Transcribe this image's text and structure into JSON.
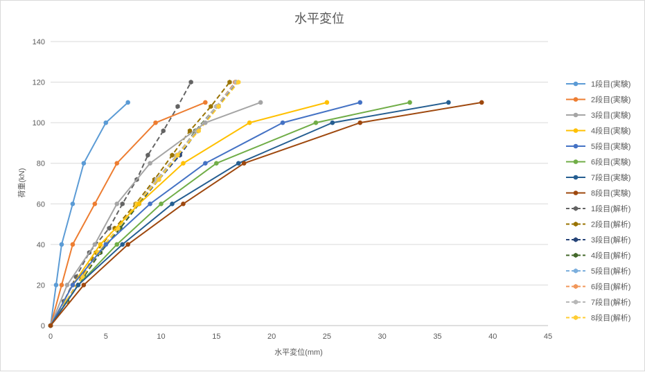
{
  "chart_data": {
    "type": "line",
    "title": "水平変位",
    "xlabel": "水平変位(mm)",
    "ylabel": "荷重(kN)",
    "xlim": [
      0,
      45
    ],
    "ylim": [
      0,
      140
    ],
    "xticks": [
      "0",
      "5",
      "10",
      "15",
      "20",
      "25",
      "30",
      "35",
      "40",
      "45"
    ],
    "yticks": [
      "0",
      "20",
      "40",
      "60",
      "80",
      "100",
      "120",
      "140"
    ],
    "grid": "horizontal",
    "legend": "right",
    "series": [
      {
        "name": "1段目(実験)",
        "color": "#5b9bd5",
        "dash": false,
        "marker": "circle",
        "points": [
          [
            0,
            0
          ],
          [
            0.5,
            20
          ],
          [
            1,
            40
          ],
          [
            2,
            60
          ],
          [
            3,
            80
          ],
          [
            5,
            100
          ],
          [
            7,
            110
          ]
        ]
      },
      {
        "name": "2段目(実験)",
        "color": "#ed7d31",
        "dash": false,
        "marker": "circle",
        "points": [
          [
            0,
            0
          ],
          [
            1,
            20
          ],
          [
            2,
            40
          ],
          [
            4,
            60
          ],
          [
            6,
            80
          ],
          [
            9.5,
            100
          ],
          [
            14,
            110
          ]
        ]
      },
      {
        "name": "3段目(実験)",
        "color": "#a5a5a5",
        "dash": false,
        "marker": "circle",
        "points": [
          [
            0,
            0
          ],
          [
            1.5,
            20
          ],
          [
            4,
            40
          ],
          [
            6,
            60
          ],
          [
            9,
            80
          ],
          [
            14,
            100
          ],
          [
            19,
            110
          ]
        ]
      },
      {
        "name": "4段目(実験)",
        "color": "#ffc000",
        "dash": false,
        "marker": "circle",
        "points": [
          [
            0,
            0
          ],
          [
            2,
            20
          ],
          [
            4.5,
            40
          ],
          [
            8,
            60
          ],
          [
            12,
            80
          ],
          [
            18,
            100
          ],
          [
            25,
            110
          ]
        ]
      },
      {
        "name": "5段目(実験)",
        "color": "#4472c4",
        "dash": false,
        "marker": "circle",
        "points": [
          [
            0,
            0
          ],
          [
            2,
            20
          ],
          [
            5,
            40
          ],
          [
            9,
            60
          ],
          [
            14,
            80
          ],
          [
            21,
            100
          ],
          [
            28,
            110
          ]
        ]
      },
      {
        "name": "6段目(実験)",
        "color": "#70ad47",
        "dash": false,
        "marker": "circle",
        "points": [
          [
            0,
            0
          ],
          [
            2.5,
            20
          ],
          [
            6,
            40
          ],
          [
            10,
            60
          ],
          [
            15,
            80
          ],
          [
            24,
            100
          ],
          [
            32.5,
            110
          ]
        ]
      },
      {
        "name": "7段目(実験)",
        "color": "#255e91",
        "dash": false,
        "marker": "circle",
        "points": [
          [
            0,
            0
          ],
          [
            2.5,
            20
          ],
          [
            6.5,
            40
          ],
          [
            11,
            60
          ],
          [
            17,
            80
          ],
          [
            25.5,
            100
          ],
          [
            36,
            110
          ]
        ]
      },
      {
        "name": "8段目(実験)",
        "color": "#9e480e",
        "dash": false,
        "marker": "circle",
        "points": [
          [
            0,
            0
          ],
          [
            3,
            20
          ],
          [
            7,
            40
          ],
          [
            12,
            60
          ],
          [
            17.5,
            80
          ],
          [
            28,
            100
          ],
          [
            39,
            110
          ]
        ]
      },
      {
        "name": "1段目(解析)",
        "color": "#636363",
        "dash": true,
        "marker": "hexagon",
        "points": [
          [
            0,
            0
          ],
          [
            1.2,
            12
          ],
          [
            2.3,
            24
          ],
          [
            3.5,
            36
          ],
          [
            5.3,
            48
          ],
          [
            6.5,
            60
          ],
          [
            7.8,
            72
          ],
          [
            8.8,
            84
          ],
          [
            10.2,
            96
          ],
          [
            11.5,
            108
          ],
          [
            12.7,
            120
          ]
        ]
      },
      {
        "name": "2段目(解析)",
        "color": "#997300",
        "dash": true,
        "marker": "hexagon",
        "points": [
          [
            0,
            0
          ],
          [
            1.4,
            12
          ],
          [
            2.8,
            24
          ],
          [
            4.1,
            36
          ],
          [
            5.8,
            48
          ],
          [
            7.7,
            60
          ],
          [
            9.4,
            72
          ],
          [
            11,
            84
          ],
          [
            12.6,
            96
          ],
          [
            14.5,
            108
          ],
          [
            16.2,
            120
          ]
        ]
      },
      {
        "name": "3段目(解析)",
        "color": "#264478",
        "dash": true,
        "marker": "hexagon",
        "points": [
          [
            0,
            0
          ],
          [
            1.5,
            12
          ],
          [
            3,
            24
          ],
          [
            4.5,
            36
          ],
          [
            6.3,
            48
          ],
          [
            8,
            60
          ],
          [
            9.8,
            72
          ],
          [
            11.7,
            84
          ],
          [
            13.3,
            96
          ],
          [
            15.2,
            108
          ],
          [
            16.8,
            120
          ]
        ]
      },
      {
        "name": "4段目(解析)",
        "color": "#43682b",
        "dash": true,
        "marker": "hexagon",
        "points": [
          [
            0,
            0
          ],
          [
            1.5,
            12
          ],
          [
            3,
            24
          ],
          [
            4.5,
            36
          ],
          [
            6.3,
            48
          ],
          [
            8,
            60
          ],
          [
            9.6,
            72
          ],
          [
            11.5,
            84
          ],
          [
            13.1,
            96
          ],
          [
            15,
            108
          ],
          [
            16.7,
            120
          ]
        ]
      },
      {
        "name": "5段目(解析)",
        "color": "#7cafdd",
        "dash": true,
        "marker": "hexagon",
        "points": [
          [
            0,
            0
          ],
          [
            1.4,
            12
          ],
          [
            2.9,
            24
          ],
          [
            4.3,
            36
          ],
          [
            6.1,
            48
          ],
          [
            7.8,
            60
          ],
          [
            9.6,
            72
          ],
          [
            11.4,
            84
          ],
          [
            13.2,
            96
          ],
          [
            15,
            108
          ],
          [
            16.7,
            120
          ]
        ]
      },
      {
        "name": "6段目(解析)",
        "color": "#f1975a",
        "dash": true,
        "marker": "hexagon",
        "points": [
          [
            0,
            0
          ],
          [
            1.4,
            12
          ],
          [
            2.9,
            24
          ],
          [
            4.3,
            36
          ],
          [
            6.1,
            48
          ],
          [
            7.8,
            60
          ],
          [
            9.6,
            72
          ],
          [
            11.4,
            84
          ],
          [
            13.2,
            96
          ],
          [
            15,
            108
          ],
          [
            16.7,
            120
          ]
        ]
      },
      {
        "name": "7段目(解析)",
        "color": "#b7b7b7",
        "dash": true,
        "marker": "hexagon",
        "points": [
          [
            0,
            0
          ],
          [
            1.4,
            12
          ],
          [
            2.9,
            24
          ],
          [
            4.3,
            36
          ],
          [
            6.1,
            48
          ],
          [
            7.8,
            60
          ],
          [
            9.6,
            72
          ],
          [
            11.4,
            84
          ],
          [
            13.2,
            96
          ],
          [
            15,
            108
          ],
          [
            16.8,
            120
          ]
        ]
      },
      {
        "name": "8段目(解析)",
        "color": "#ffcd33",
        "dash": true,
        "marker": "hexagon",
        "points": [
          [
            0,
            0
          ],
          [
            1.4,
            12
          ],
          [
            2.9,
            24
          ],
          [
            4.3,
            36
          ],
          [
            6.1,
            48
          ],
          [
            7.8,
            60
          ],
          [
            9.8,
            72
          ],
          [
            11.5,
            84
          ],
          [
            13.4,
            96
          ],
          [
            15.2,
            108
          ],
          [
            17,
            120
          ]
        ]
      }
    ]
  }
}
